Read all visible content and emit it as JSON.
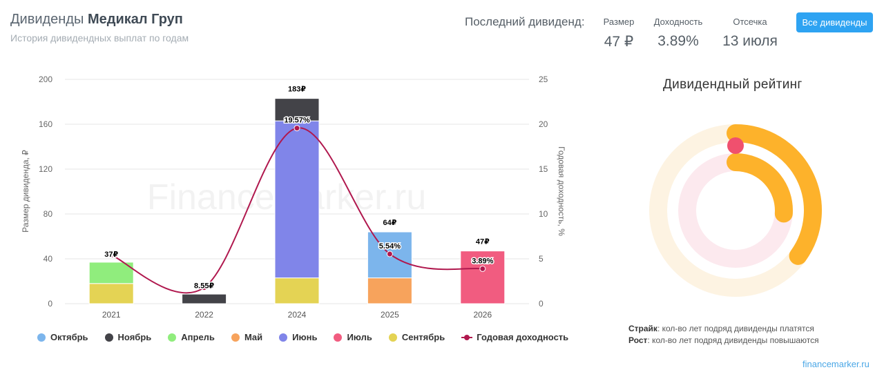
{
  "header": {
    "title_prefix": "Дивиденды",
    "title_company": "Медикал Груп",
    "subtitle": "История дивидендных выплат по годам",
    "last_label": "Последний дивиденд:",
    "stats": [
      {
        "label": "Размер",
        "value": "47 ₽"
      },
      {
        "label": "Доходность",
        "value": "3.89%"
      },
      {
        "label": "Отсечка",
        "value": "13 июля"
      }
    ],
    "all_button": "Все дивиденды"
  },
  "watermark": "FinanceMarker.ru",
  "colors": {
    "october": "#7cb5ec",
    "november": "#434348",
    "april": "#90ed7d",
    "may": "#f7a35c",
    "june": "#8085e9",
    "july": "#f15c80",
    "september": "#e4d354",
    "yield": "#b0184e"
  },
  "chart_data": {
    "type": "bar",
    "stacked": true,
    "categories": [
      "2021",
      "2022",
      "2024",
      "2025",
      "2026"
    ],
    "ylabel": "Размер дивиденда, ₽",
    "ylabel_right": "Годовая доходность, %",
    "ylim": [
      0,
      200
    ],
    "y_ticks": [
      0,
      40,
      80,
      120,
      160,
      200
    ],
    "ylim_right": [
      0,
      25
    ],
    "y_right_ticks": [
      0,
      5,
      10,
      15,
      20,
      25
    ],
    "grid": true,
    "legend_position": "bottom",
    "series": [
      {
        "name": "Октябрь",
        "color_key": "october",
        "values": [
          0,
          0,
          0,
          41,
          0
        ]
      },
      {
        "name": "Ноябрь",
        "color_key": "november",
        "values": [
          0,
          8.55,
          20,
          0,
          0
        ]
      },
      {
        "name": "Апрель",
        "color_key": "april",
        "values": [
          19,
          0,
          0,
          0,
          0
        ]
      },
      {
        "name": "Май",
        "color_key": "may",
        "values": [
          0,
          0,
          0,
          23,
          0
        ]
      },
      {
        "name": "Июнь",
        "color_key": "june",
        "values": [
          0,
          0,
          140,
          0,
          0
        ]
      },
      {
        "name": "Июль",
        "color_key": "july",
        "values": [
          0,
          0,
          0,
          0,
          47
        ]
      },
      {
        "name": "Сентябрь",
        "color_key": "september",
        "values": [
          18,
          0,
          23,
          0,
          0
        ]
      }
    ],
    "stack_order": [
      "Сентябрь",
      "Май",
      "Июнь",
      "Апрель",
      "Октябрь",
      "Ноябрь",
      "Июль"
    ],
    "totals": [
      37,
      8.55,
      183,
      64,
      47
    ],
    "total_labels": [
      "37₽",
      "8.55₽",
      "183₽",
      "64₽",
      "47₽"
    ],
    "yield": {
      "name": "Годовая доходность",
      "color_key": "yield",
      "values": [
        5.4,
        1.8,
        19.57,
        5.54,
        3.89
      ]
    },
    "yield_labels": [
      "",
      "",
      "19.57%",
      "5.54%",
      "3.89%"
    ]
  },
  "rating": {
    "title": "Дивидендный рейтинг",
    "strike_fraction": 0.35,
    "growth_fraction": 0.26,
    "strike_label": "Страйк",
    "strike_text": ": кол-во лет подряд дивиденды платятся",
    "growth_label": "Рост",
    "growth_text": ": кол-во лет подряд дивиденды повышаются"
  },
  "footer": {
    "link": "financemarker.ru"
  }
}
